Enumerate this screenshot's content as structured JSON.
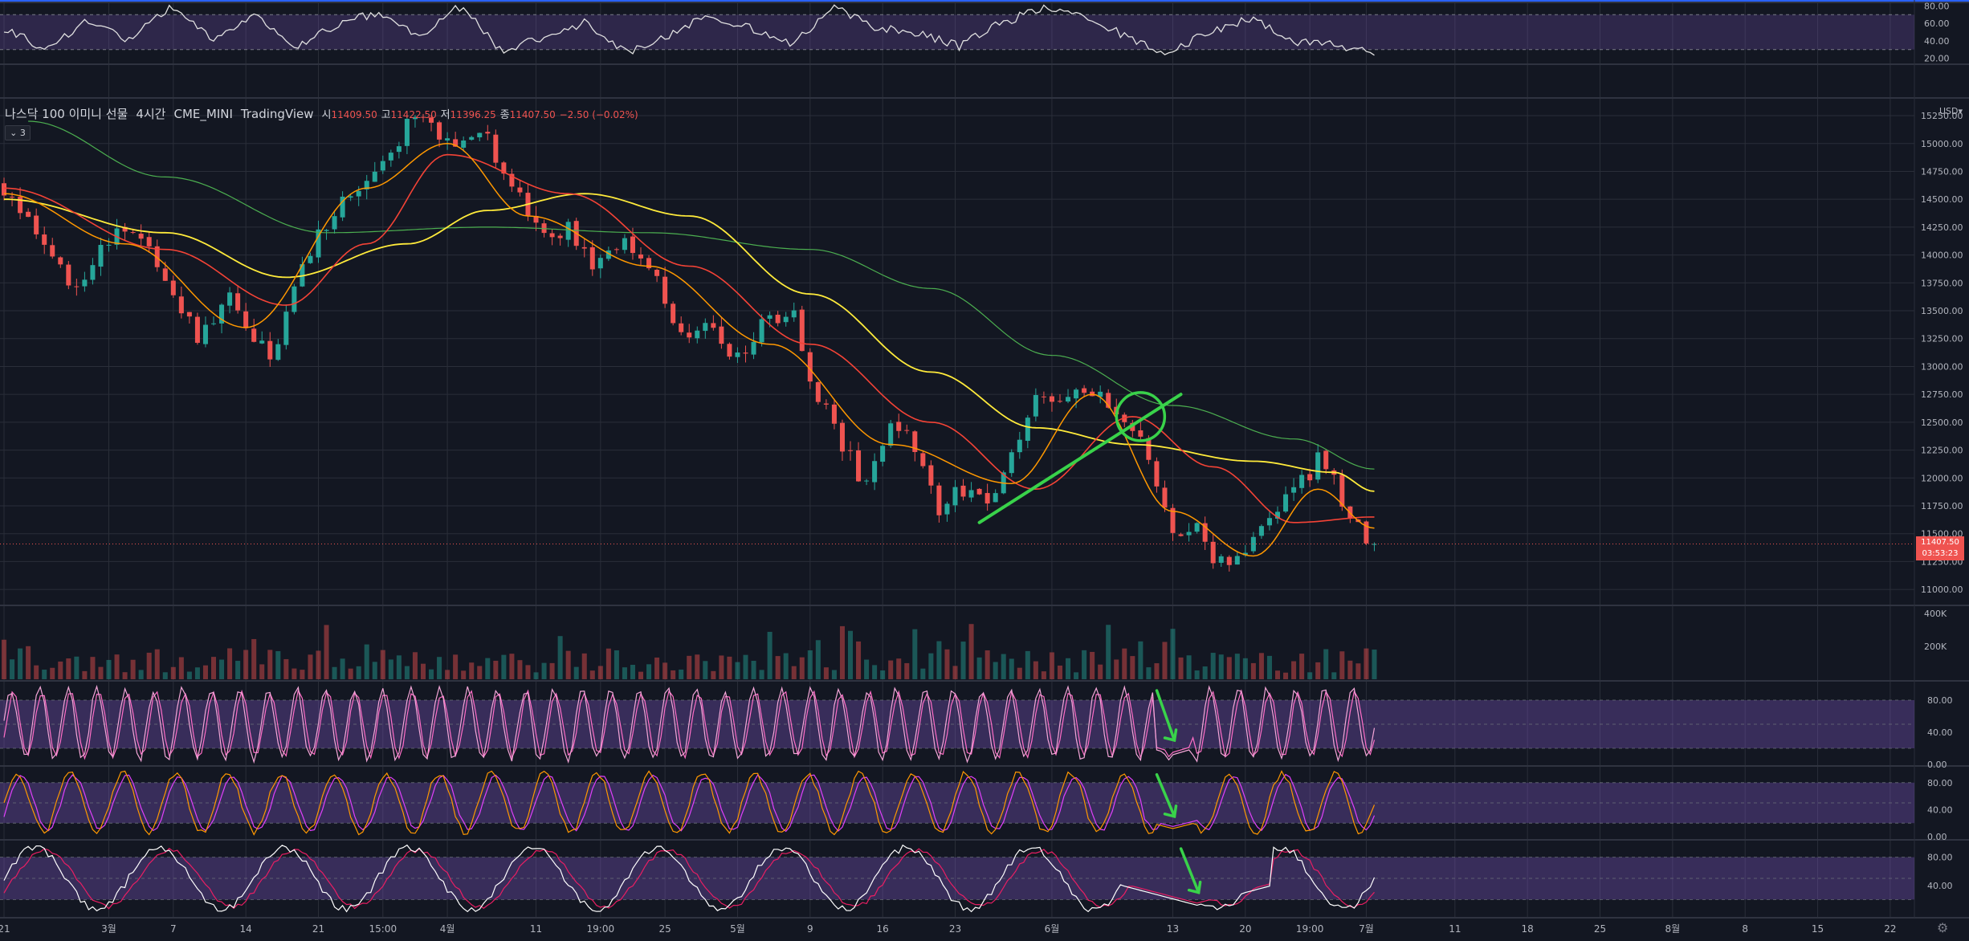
{
  "header": {
    "symbol": "나스닥 100 이미니 선물",
    "interval": "4시간",
    "exchange": "CME_MINI",
    "source": "TradingView",
    "open_label": "시",
    "open": "11409.50",
    "high_label": "고",
    "high": "11422.50",
    "low_label": "저",
    "low": "11396.25",
    "close_label": "종",
    "close": "11407.50",
    "change": "−2.50 (−0.02%)",
    "indicator_badge": "3",
    "currency": "USD"
  },
  "price_tag": {
    "price": "11407.50",
    "countdown": "03:53:23"
  },
  "colors": {
    "background": "#131722",
    "grid": "#2a2e39",
    "up": "#26a69a",
    "down": "#ef5350",
    "band": "#7e57c2",
    "ma_fast": "#ff9800",
    "ma_mid": "#f44336",
    "ma_slow": "#ffeb3b",
    "ma_long": "#4caf50",
    "annotation": "#39d24a"
  },
  "icons": {
    "settings": "gear-icon",
    "collapse": "chevron-down-icon"
  },
  "chart_data": [
    {
      "type": "line",
      "panel": "oscillator-top",
      "yticks": [
        "80.00",
        "60.00",
        "40.00",
        "20.00"
      ],
      "ylim": [
        15,
        85
      ],
      "band": [
        30,
        70
      ],
      "series": [
        {
          "values": [
            55,
            30,
            64,
            40,
            78,
            42,
            70,
            32,
            58,
            72,
            45,
            80,
            28,
            44,
            62,
            26,
            46,
            70,
            54,
            36,
            78,
            54,
            50,
            34,
            60,
            78,
            66,
            46,
            24,
            50,
            66,
            40,
            36,
            28
          ]
        }
      ]
    },
    {
      "type": "candlestick",
      "panel": "price",
      "yticks": [
        "15250.00",
        "15000.00",
        "14750.00",
        "14500.00",
        "14250.00",
        "14000.00",
        "13750.00",
        "13500.00",
        "13250.00",
        "13000.00",
        "12750.00",
        "12500.00",
        "12250.00",
        "12000.00",
        "11750.00",
        "11500.00",
        "11250.00",
        "11000.00"
      ],
      "ylim": [
        10900,
        15380
      ],
      "xticks": [
        {
          "x": 0,
          "label": "21"
        },
        {
          "x": 13,
          "label": "3월"
        },
        {
          "x": 21,
          "label": "7"
        },
        {
          "x": 30,
          "label": "14"
        },
        {
          "x": 39,
          "label": "21"
        },
        {
          "x": 47,
          "label": "15:00"
        },
        {
          "x": 55,
          "label": "4월"
        },
        {
          "x": 66,
          "label": "11"
        },
        {
          "x": 74,
          "label": "19:00"
        },
        {
          "x": 82,
          "label": "25"
        },
        {
          "x": 91,
          "label": "5월"
        },
        {
          "x": 100,
          "label": "9"
        },
        {
          "x": 109,
          "label": "16"
        },
        {
          "x": 118,
          "label": "23"
        },
        {
          "x": 130,
          "label": "6월"
        },
        {
          "x": 145,
          "label": "13"
        },
        {
          "x": 154,
          "label": "20"
        },
        {
          "x": 162,
          "label": "19:00"
        },
        {
          "x": 169,
          "label": "7월"
        },
        {
          "x": 180,
          "label": "11"
        },
        {
          "x": 189,
          "label": "18"
        },
        {
          "x": 198,
          "label": "25"
        },
        {
          "x": 207,
          "label": "8월"
        },
        {
          "x": 216,
          "label": "8"
        },
        {
          "x": 225,
          "label": "15"
        },
        {
          "x": 234,
          "label": "22"
        }
      ],
      "xlim": [
        -0.5,
        237
      ],
      "close_keyframes": [
        [
          0,
          14600
        ],
        [
          3,
          14350
        ],
        [
          5,
          14150
        ],
        [
          9,
          13650
        ],
        [
          12,
          14150
        ],
        [
          16,
          14200
        ],
        [
          20,
          13800
        ],
        [
          24,
          13250
        ],
        [
          28,
          13650
        ],
        [
          33,
          13050
        ],
        [
          38,
          14050
        ],
        [
          42,
          14450
        ],
        [
          46,
          14700
        ],
        [
          50,
          15150
        ],
        [
          53,
          15200
        ],
        [
          56,
          14900
        ],
        [
          59,
          15150
        ],
        [
          63,
          14600
        ],
        [
          67,
          14150
        ],
        [
          70,
          14250
        ],
        [
          73,
          13850
        ],
        [
          77,
          14150
        ],
        [
          80,
          13950
        ],
        [
          84,
          13250
        ],
        [
          88,
          13400
        ],
        [
          91,
          13050
        ],
        [
          94,
          13350
        ],
        [
          98,
          13500
        ],
        [
          100,
          12900
        ],
        [
          104,
          12300
        ],
        [
          107,
          11900
        ],
        [
          110,
          12500
        ],
        [
          113,
          12300
        ],
        [
          116,
          11700
        ],
        [
          118,
          11850
        ],
        [
          122,
          11800
        ],
        [
          125,
          12200
        ],
        [
          128,
          12800
        ],
        [
          131,
          12650
        ],
        [
          134,
          12800
        ],
        [
          137,
          12650
        ],
        [
          141,
          12450
        ],
        [
          143,
          11900
        ],
        [
          146,
          11400
        ],
        [
          148,
          11600
        ],
        [
          150,
          11300
        ],
        [
          152,
          11250
        ],
        [
          155,
          11400
        ],
        [
          158,
          11700
        ],
        [
          161,
          11950
        ],
        [
          163,
          12150
        ],
        [
          165,
          12050
        ],
        [
          166,
          11700
        ],
        [
          168,
          11550
        ],
        [
          170,
          11407.5
        ]
      ],
      "ma_fast": [
        [
          0,
          14550
        ],
        [
          15,
          14100
        ],
        [
          30,
          13350
        ],
        [
          45,
          14600
        ],
        [
          55,
          15000
        ],
        [
          65,
          14350
        ],
        [
          80,
          13900
        ],
        [
          95,
          13200
        ],
        [
          110,
          12300
        ],
        [
          125,
          11950
        ],
        [
          135,
          12750
        ],
        [
          145,
          11700
        ],
        [
          155,
          11300
        ],
        [
          163,
          11900
        ],
        [
          170,
          11550
        ]
      ],
      "ma_mid": [
        [
          0,
          14600
        ],
        [
          20,
          14050
        ],
        [
          35,
          13550
        ],
        [
          45,
          14100
        ],
        [
          55,
          14900
        ],
        [
          70,
          14550
        ],
        [
          85,
          13900
        ],
        [
          100,
          13200
        ],
        [
          115,
          12500
        ],
        [
          128,
          11900
        ],
        [
          140,
          12550
        ],
        [
          150,
          12100
        ],
        [
          160,
          11600
        ],
        [
          170,
          11650
        ]
      ],
      "ma_slow": [
        [
          0,
          14500
        ],
        [
          20,
          14200
        ],
        [
          35,
          13800
        ],
        [
          50,
          14100
        ],
        [
          60,
          14400
        ],
        [
          72,
          14550
        ],
        [
          85,
          14350
        ],
        [
          100,
          13650
        ],
        [
          115,
          12950
        ],
        [
          128,
          12450
        ],
        [
          140,
          12300
        ],
        [
          155,
          12150
        ],
        [
          165,
          12050
        ],
        [
          170,
          11880
        ]
      ],
      "ma_long": [
        [
          3,
          15200
        ],
        [
          20,
          14700
        ],
        [
          40,
          14200
        ],
        [
          60,
          14250
        ],
        [
          80,
          14200
        ],
        [
          100,
          14050
        ],
        [
          115,
          13700
        ],
        [
          130,
          13100
        ],
        [
          145,
          12650
        ],
        [
          160,
          12350
        ],
        [
          170,
          12080
        ]
      ],
      "trendline": [
        [
          121,
          11600
        ],
        [
          146,
          12750
        ]
      ],
      "ellipse_center": [
        141,
        12550
      ]
    },
    {
      "type": "bar",
      "panel": "volume",
      "yticks": [
        "400K",
        "200K"
      ],
      "ylim": [
        0,
        430000
      ]
    },
    {
      "type": "line",
      "panel": "stoch-1",
      "yticks": [
        "80.00",
        "40.00",
        "0.00"
      ],
      "ylim": [
        0,
        100
      ],
      "band": [
        20,
        80
      ],
      "cycles": 48,
      "low_at": 145
    },
    {
      "type": "line",
      "panel": "stoch-2",
      "yticks": [
        "80.00",
        "40.00",
        "0.00"
      ],
      "ylim": [
        0,
        100
      ],
      "band": [
        20,
        80
      ],
      "cycles": 26,
      "low_at": 145
    },
    {
      "type": "line",
      "panel": "stoch-3",
      "yticks": [
        "80.00",
        "40.00"
      ],
      "ylim": [
        0,
        100
      ],
      "band": [
        20,
        80
      ],
      "cycles": 11,
      "low_at": 148
    }
  ]
}
